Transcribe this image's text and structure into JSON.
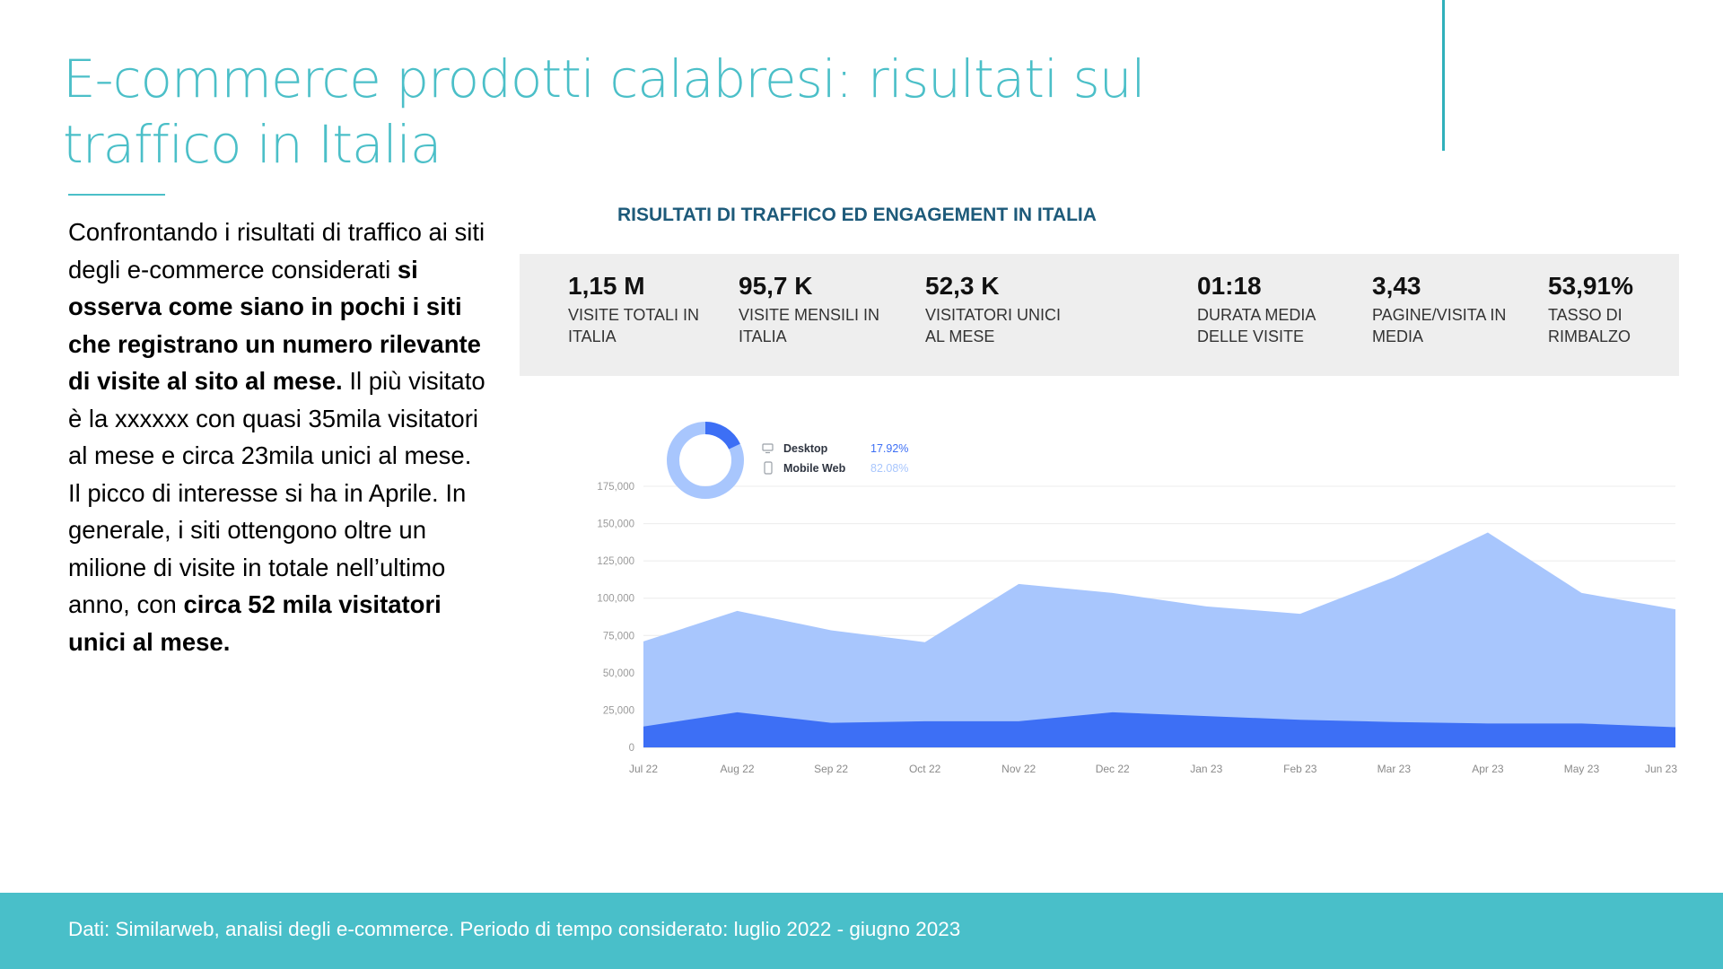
{
  "slide": {
    "title_line1": "E-commerce prodotti calabresi: risultati sul",
    "title_line2": "traffico in Italia"
  },
  "text": {
    "p1": "Confrontando i risultati di traffico ai siti degli e-commerce considerati ",
    "b1": "si osserva come siano in pochi i siti che registrano un numero rilevante di visite al sito al mese.",
    "p2": " Il più visitato è la xxxxxx con quasi 35mila visitatori al mese e circa 23mila unici al mese. Il picco di interesse si ha in Aprile. In generale, i siti ottengono oltre un milione di visite in totale nell’ultimo anno, con ",
    "b2": "circa 52 mila visitatori unici al mese."
  },
  "kpi_title": "RISULTATI DI TRAFFICO ED ENGAGEMENT IN ITALIA",
  "kpis": [
    {
      "value": "1,15 M",
      "label": "VISITE TOTALI IN ITALIA"
    },
    {
      "value": "95,7 K",
      "label": "VISITE MENSILI IN ITALIA"
    },
    {
      "value": "52,3 K",
      "label": "VISITATORI UNICI AL MESE"
    },
    {
      "value": "01:18",
      "label": "DURATA MEDIA DELLE VISITE"
    },
    {
      "value": "3,43",
      "label": "PAGINE/VISITA IN MEDIA"
    },
    {
      "value": "53,91%",
      "label": "TASSO DI RIMBALZO"
    }
  ],
  "footer": "Dati: Similarweb, analisi degli e-commerce. Periodo di tempo considerato: luglio 2022 - giugno 2023",
  "colors": {
    "accent": "#4bbfc8",
    "desktop": "#3d6ff5",
    "mobile_web": "#a8c6fd"
  },
  "chart_data": {
    "type": "area",
    "stacked": true,
    "categories": [
      "Jul 22",
      "Aug 22",
      "Sep 22",
      "Oct 22",
      "Nov 22",
      "Dec 22",
      "Jan 23",
      "Feb 23",
      "Mar 23",
      "Apr 23",
      "May 23",
      "Jun 23"
    ],
    "yticks": [
      "0",
      "25,000",
      "50,000",
      "75,000",
      "100,000",
      "125,000",
      "150,000",
      "175,000"
    ],
    "ylim": [
      0,
      175000
    ],
    "grid": true,
    "series": [
      {
        "name": "Desktop",
        "values": [
          14000,
          23500,
          16500,
          17500,
          17500,
          23500,
          21000,
          18500,
          17000,
          16000,
          16000,
          13500
        ]
      },
      {
        "name": "Mobile Web",
        "values": [
          57000,
          68000,
          62000,
          53000,
          92000,
          80000,
          73500,
          71000,
          97000,
          128000,
          87500,
          79000
        ]
      }
    ],
    "donut": {
      "legend": [
        {
          "name": "Desktop",
          "percent": "17.92%",
          "value": 17.92
        },
        {
          "name": "Mobile Web",
          "percent": "82.08%",
          "value": 82.08
        }
      ]
    }
  }
}
